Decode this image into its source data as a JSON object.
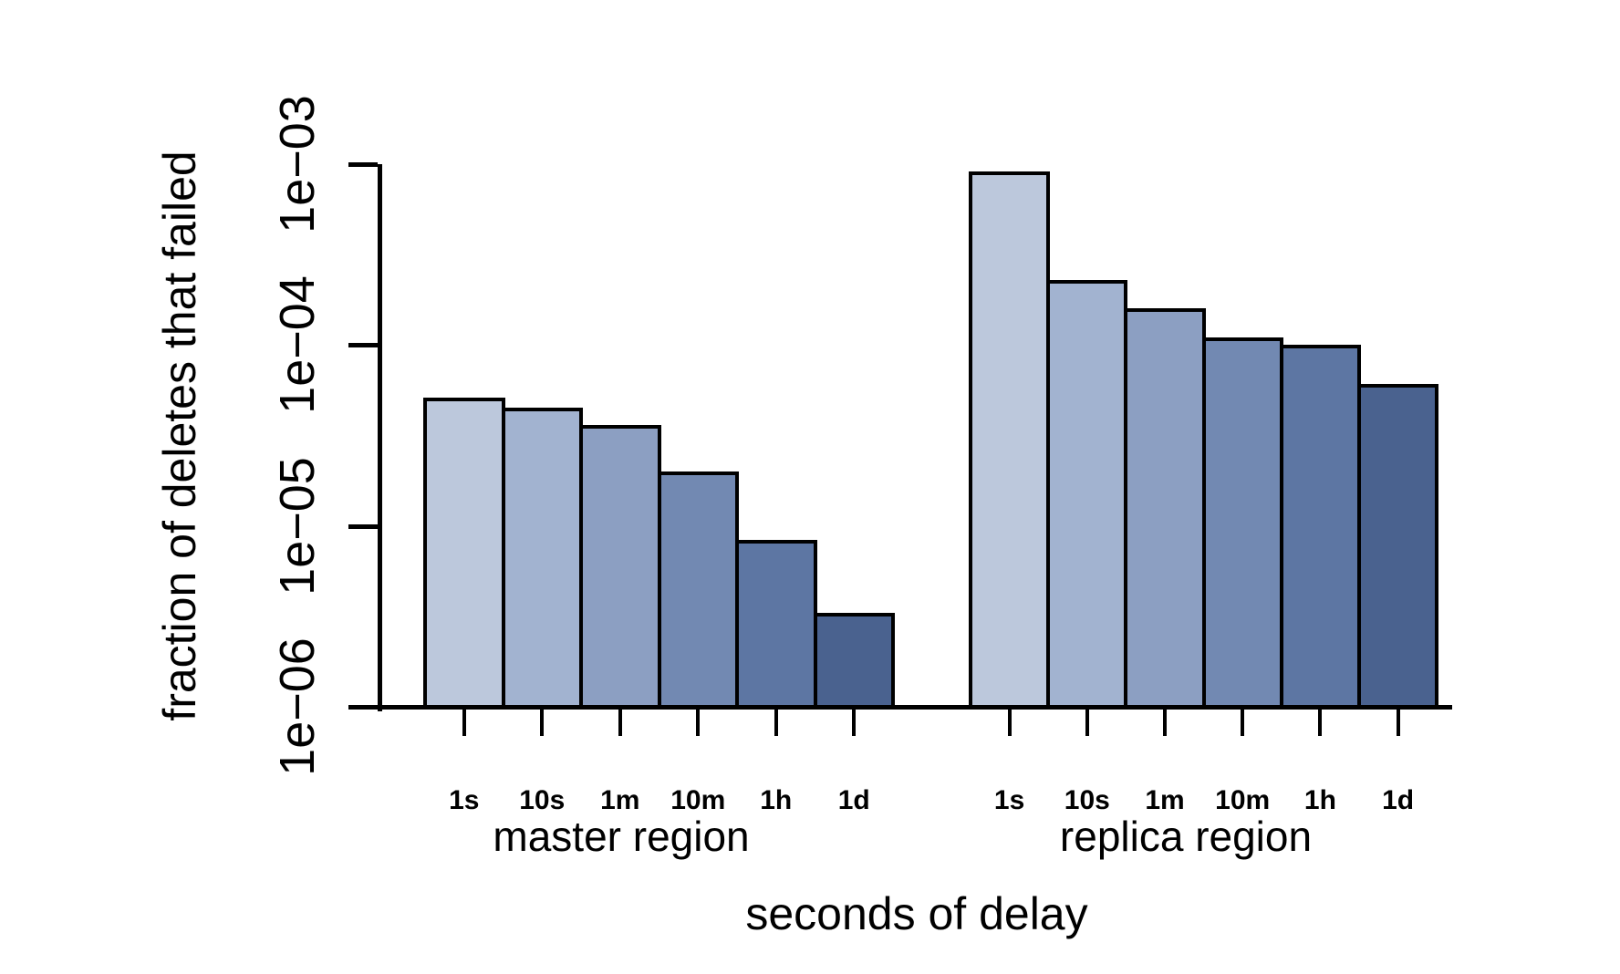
{
  "chart_data": {
    "type": "bar",
    "title": "",
    "xlabel": "seconds of delay",
    "ylabel": "fraction of deletes that failed",
    "y_scale": "log",
    "ylim": [
      1e-06,
      0.001
    ],
    "grid": false,
    "legend": "none",
    "y_ticks": [
      {
        "label": "1e−03",
        "value": 0.001
      },
      {
        "label": "1e−04",
        "value": 0.0001
      },
      {
        "label": "1e−05",
        "value": 1e-05
      },
      {
        "label": "1e−06",
        "value": 1e-06
      }
    ],
    "categories": [
      "1s",
      "10s",
      "1m",
      "10m",
      "1h",
      "1d"
    ],
    "series": [
      {
        "name": "master region",
        "values": [
          5.1e-05,
          4.5e-05,
          3.6e-05,
          2e-05,
          8.4e-06,
          3.3e-06
        ]
      },
      {
        "name": "replica region",
        "values": [
          0.00091,
          0.00023,
          0.00016,
          0.00011,
          0.0001,
          6.1e-05
        ]
      }
    ],
    "bar_colors": [
      "#bcc8dc",
      "#a2b3d0",
      "#8c9fc2",
      "#7289b2",
      "#5d76a3",
      "#4a628f"
    ],
    "bar_border_color": "#000000",
    "axis_color": "#000000"
  }
}
